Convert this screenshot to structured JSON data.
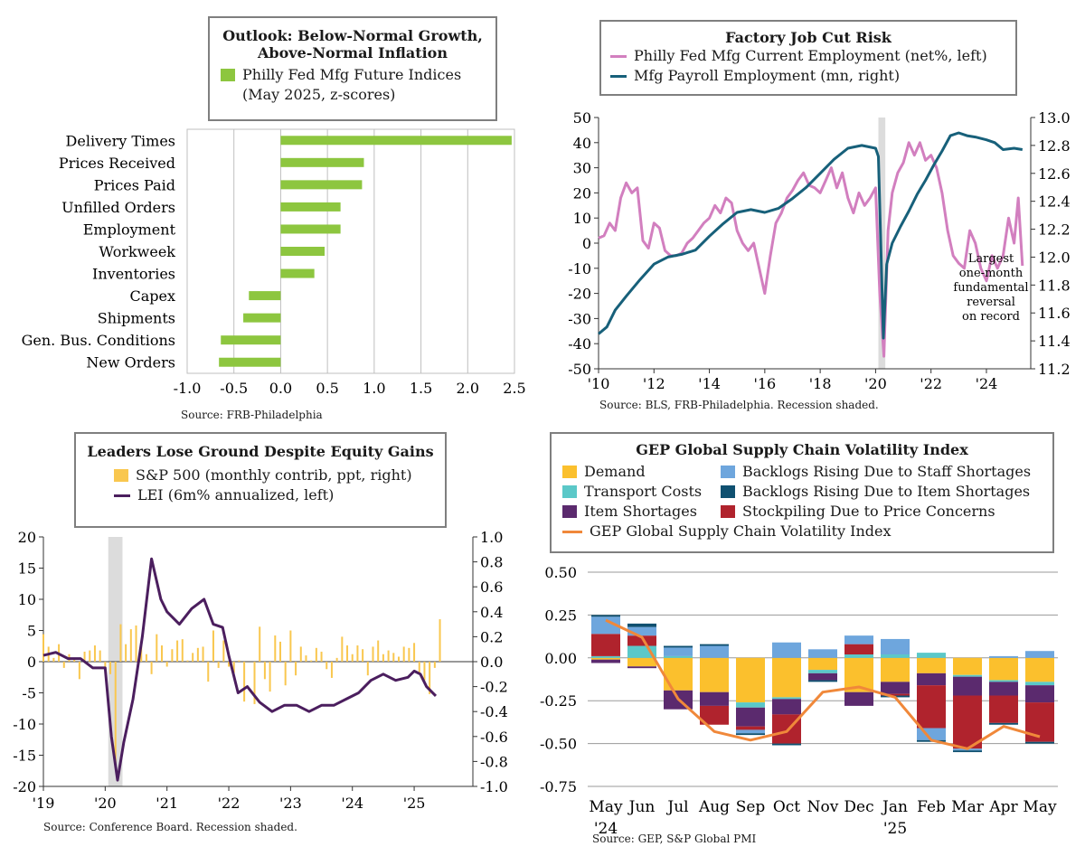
{
  "panels": [
    {
      "id": "philly-outlook",
      "title": "Outlook: Below-Normal Growth, Above-Normal Inflation",
      "source": "Source: FRB-Philadelphia",
      "chart_data": {
        "type": "bar",
        "orientation": "horizontal",
        "title": "Outlook: Below-Normal Growth, Above-Normal Inflation",
        "categories": [
          "Delivery Times",
          "Prices Received",
          "Prices Paid",
          "Unfilled Orders",
          "Employment",
          "Workweek",
          "Inventories",
          "Capex",
          "Shipments",
          "Gen. Bus. Conditions",
          "New Orders"
        ],
        "series": [
          {
            "name": "Philly Fed Mfg Future Indices (May 2025, z-scores)",
            "values": [
              2.47,
              0.89,
              0.87,
              0.64,
              0.64,
              0.47,
              0.36,
              -0.34,
              -0.4,
              -0.64,
              -0.66
            ]
          }
        ],
        "xlim": [
          -1.0,
          2.5
        ],
        "xticks": [
          "-1.0",
          "-0.5",
          "0.0",
          "0.5",
          "1.0",
          "1.5",
          "2.0",
          "2.5"
        ],
        "grid": true,
        "color": "#8dc63f",
        "legend": "top"
      }
    },
    {
      "id": "factory-job-cut",
      "title": "Factory Job Cut Risk",
      "source": "Source: BLS, FRB-Philadelphia. Recession shaded.",
      "annotation": [
        "Largest",
        "one-month",
        "fundamental",
        "reversal",
        "on record"
      ],
      "chart_data": {
        "type": "line",
        "title": "Factory Job Cut Risk",
        "xlim": [
          2010,
          2025.6
        ],
        "xticks": [
          "'10",
          "'12",
          "'14",
          "'16",
          "'18",
          "'20",
          "'22",
          "'24"
        ],
        "ylim_left": [
          -50,
          50
        ],
        "yticks_left": [
          "50",
          "40",
          "30",
          "20",
          "10",
          "0",
          "-10",
          "-20",
          "-30",
          "-40",
          "-50"
        ],
        "ylim_right": [
          11.2,
          13.0
        ],
        "yticks_right": [
          "13.0",
          "12.8",
          "12.6",
          "12.4",
          "12.2",
          "12.0",
          "11.8",
          "11.6",
          "11.4",
          "11.2"
        ],
        "recession": [
          2020.1,
          2020.35
        ],
        "series": [
          {
            "name": "Philly Fed Mfg Current Employment (net%, left)",
            "axis": "left",
            "color": "#d27fbf",
            "x": [
              2010,
              2010.2,
              2010.4,
              2010.6,
              2010.8,
              2011,
              2011.2,
              2011.4,
              2011.6,
              2011.8,
              2012,
              2012.2,
              2012.4,
              2012.6,
              2012.8,
              2013,
              2013.2,
              2013.4,
              2013.6,
              2013.8,
              2014,
              2014.2,
              2014.4,
              2014.6,
              2014.8,
              2015,
              2015.2,
              2015.4,
              2015.6,
              2015.8,
              2016,
              2016.2,
              2016.4,
              2016.6,
              2016.8,
              2017,
              2017.2,
              2017.4,
              2017.6,
              2017.8,
              2018,
              2018.2,
              2018.4,
              2018.6,
              2018.8,
              2019,
              2019.2,
              2019.4,
              2019.6,
              2019.8,
              2020,
              2020.15,
              2020.3,
              2020.45,
              2020.6,
              2020.8,
              2021,
              2021.2,
              2021.4,
              2021.6,
              2021.8,
              2022,
              2022.2,
              2022.4,
              2022.6,
              2022.8,
              2023,
              2023.2,
              2023.4,
              2023.6,
              2023.8,
              2024,
              2024.2,
              2024.4,
              2024.6,
              2024.8,
              2025,
              2025.15,
              2025.3
            ],
            "values": [
              2,
              3,
              8,
              5,
              18,
              24,
              20,
              22,
              1,
              -2,
              8,
              6,
              -3,
              -5,
              -5,
              -4,
              0,
              2,
              5,
              8,
              10,
              15,
              12,
              18,
              16,
              5,
              0,
              -3,
              0,
              -10,
              -20,
              -5,
              8,
              12,
              18,
              21,
              25,
              28,
              23,
              22,
              20,
              25,
              30,
              22,
              28,
              18,
              12,
              20,
              15,
              18,
              22,
              -20,
              -45,
              5,
              20,
              28,
              32,
              40,
              35,
              40,
              33,
              35,
              30,
              20,
              5,
              -5,
              -8,
              -10,
              5,
              0,
              -10,
              -15,
              -5,
              -10,
              -5,
              10,
              0,
              18,
              -9
            ]
          },
          {
            "name": "Mfg Payroll Employment (mn, right)",
            "axis": "right",
            "color": "#17607a",
            "x": [
              2010,
              2010.3,
              2010.6,
              2011,
              2011.5,
              2012,
              2012.5,
              2013,
              2013.5,
              2014,
              2014.5,
              2015,
              2015.5,
              2016,
              2016.5,
              2017,
              2017.5,
              2018,
              2018.5,
              2019,
              2019.5,
              2020,
              2020.1,
              2020.28,
              2020.4,
              2020.6,
              2020.9,
              2021.2,
              2021.5,
              2021.8,
              2022.1,
              2022.4,
              2022.7,
              2023,
              2023.3,
              2023.6,
              2024,
              2024.3,
              2024.6,
              2025,
              2025.3
            ],
            "values": [
              11.45,
              11.5,
              11.62,
              11.72,
              11.84,
              11.95,
              12.0,
              12.02,
              12.05,
              12.15,
              12.24,
              12.32,
              12.34,
              12.32,
              12.35,
              12.42,
              12.5,
              12.6,
              12.7,
              12.78,
              12.8,
              12.78,
              12.72,
              11.42,
              11.95,
              12.1,
              12.22,
              12.33,
              12.45,
              12.55,
              12.66,
              12.76,
              12.87,
              12.89,
              12.87,
              12.86,
              12.84,
              12.82,
              12.77,
              12.78,
              12.77
            ]
          }
        ]
      }
    },
    {
      "id": "leaders-lose-ground",
      "title": "Leaders Lose Ground Despite Equity Gains",
      "source": "Source: Conference Board. Recession shaded.",
      "chart_data": {
        "type": "bar+line",
        "title": "Leaders Lose Ground Despite Equity Gains",
        "xlim": [
          2019,
          2025.95
        ],
        "xticks": [
          "'19",
          "'20",
          "'21",
          "'22",
          "'23",
          "'24",
          "'25"
        ],
        "ylim_left": [
          -20,
          20
        ],
        "yticks_left": [
          "20",
          "15",
          "10",
          "5",
          "0",
          "-5",
          "-10",
          "-15",
          "-20"
        ],
        "ylim_right": [
          -1.0,
          1.0
        ],
        "yticks_right": [
          "1.0",
          "0.8",
          "0.6",
          "0.4",
          "0.2",
          "0.0",
          "-0.2",
          "-0.4",
          "-0.6",
          "-0.8",
          "-1.0"
        ],
        "recession": [
          2020.05,
          2020.28
        ],
        "series": [
          {
            "name": "S&P 500 (monthly contrib, ppt, right)",
            "axis": "right",
            "color": "#f9c74f",
            "type": "bar",
            "values": [
              0.22,
              0.12,
              0.03,
              0.14,
              -0.05,
              0.06,
              0.03,
              -0.14,
              0.08,
              0.09,
              0.13,
              0.09,
              -0.05,
              -0.1,
              -0.85,
              0.3,
              0.14,
              0.26,
              0.29,
              0.13,
              0.06,
              -0.1,
              0.22,
              0.13,
              -0.04,
              0.1,
              0.17,
              0.18,
              0.01,
              0.07,
              0.11,
              0.12,
              -0.16,
              0.25,
              -0.05,
              0.17,
              -0.04,
              -0.09,
              0.01,
              -0.32,
              0.0,
              -0.34,
              0.28,
              -0.14,
              -0.24,
              0.21,
              0.16,
              -0.19,
              0.25,
              -0.11,
              0.12,
              0.05,
              0.01,
              0.11,
              0.08,
              -0.06,
              -0.13,
              0.03,
              0.2,
              0.13,
              0.06,
              0.13,
              0.1,
              -0.11,
              0.12,
              0.17,
              0.06,
              0.09,
              0.07,
              0.04,
              0.12,
              0.11,
              0.15,
              -0.1,
              -0.15,
              -0.26,
              -0.05,
              0.34
            ]
          },
          {
            "name": "LEI (6m% annualized, left)",
            "axis": "left",
            "color": "#4b1e5e",
            "type": "line",
            "x": [
              2019,
              2019.2,
              2019.4,
              2019.6,
              2019.8,
              2020,
              2020.1,
              2020.2,
              2020.3,
              2020.45,
              2020.6,
              2020.75,
              2020.9,
              2021,
              2021.2,
              2021.4,
              2021.6,
              2021.75,
              2021.9,
              2022,
              2022.15,
              2022.3,
              2022.5,
              2022.7,
              2022.9,
              2023.1,
              2023.3,
              2023.5,
              2023.7,
              2023.9,
              2024.1,
              2024.3,
              2024.5,
              2024.7,
              2024.9,
              2025,
              2025.1,
              2025.2,
              2025.35
            ],
            "values": [
              1,
              1.5,
              0.5,
              0.5,
              -1,
              -1,
              -12,
              -19,
              -13,
              -6,
              4,
              16.5,
              10,
              8,
              6,
              8.5,
              10,
              6,
              5.5,
              1,
              -5,
              -4,
              -6.5,
              -8,
              -7,
              -7,
              -8,
              -7,
              -7,
              -6,
              -5,
              -3,
              -2,
              -3,
              -2.5,
              -1.5,
              -2,
              -4,
              -5.5
            ]
          }
        ]
      }
    },
    {
      "id": "gep-supply-chain",
      "title": "GEP Global Supply Chain Volatility Index",
      "source": "Source: GEP, S&P Global PMI",
      "chart_data": {
        "type": "stacked-bar+line",
        "title": "GEP Global Supply Chain Volatility Index",
        "categories": [
          "May",
          "Jun",
          "Jul",
          "Aug",
          "Sep",
          "Oct",
          "Nov",
          "Dec",
          "Jan",
          "Feb",
          "Mar",
          "Apr",
          "May"
        ],
        "category_sublabels": [
          "'24",
          "",
          "",
          "",
          "",
          "",
          "",
          "",
          "'25",
          "",
          "",
          "",
          ""
        ],
        "ylim": [
          -0.75,
          0.5
        ],
        "yticks": [
          "0.50",
          "0.25",
          "0.00",
          "-0.25",
          "-0.50",
          "-0.75"
        ],
        "series": [
          {
            "name": "Demand",
            "color": "#fbc02d",
            "values": [
              -0.01,
              -0.05,
              -0.19,
              -0.2,
              -0.26,
              -0.23,
              -0.07,
              -0.2,
              -0.14,
              -0.09,
              -0.1,
              -0.13,
              -0.14
            ]
          },
          {
            "name": "Transport Costs",
            "color": "#5bc8c8",
            "values": [
              0.01,
              0.07,
              0.01,
              0.0,
              -0.03,
              -0.01,
              -0.02,
              0.02,
              0.02,
              0.03,
              -0.01,
              -0.01,
              -0.02
            ]
          },
          {
            "name": "Item Shortages",
            "color": "#5b2a6e",
            "values": [
              -0.02,
              -0.01,
              -0.11,
              -0.08,
              -0.11,
              -0.09,
              -0.04,
              -0.08,
              -0.07,
              -0.07,
              -0.11,
              -0.08,
              -0.1
            ]
          },
          {
            "name": "Stockpiling Due to Price Concerns",
            "color": "#b0232d",
            "values": [
              0.13,
              0.06,
              0.0,
              -0.11,
              -0.02,
              -0.17,
              0.0,
              0.06,
              -0.01,
              -0.25,
              -0.31,
              -0.16,
              -0.23
            ]
          },
          {
            "name": "Backlogs Rising Due to Staff Shortages",
            "color": "#6ea6dd",
            "values": [
              0.1,
              0.05,
              0.05,
              0.07,
              -0.02,
              0.09,
              0.05,
              0.05,
              0.09,
              -0.07,
              -0.01,
              0.01,
              0.04
            ]
          },
          {
            "name": "Backlogs Rising Due to Item Shortages",
            "color": "#0f5070",
            "values": [
              0.01,
              0.02,
              0.01,
              0.01,
              -0.01,
              -0.01,
              -0.01,
              0.0,
              -0.01,
              -0.01,
              -0.01,
              -0.01,
              -0.01
            ]
          },
          {
            "name": "GEP Global Supply Chain Volatility Index",
            "color": "#f0883a",
            "type": "line",
            "values": [
              0.22,
              0.12,
              -0.24,
              -0.43,
              -0.48,
              -0.43,
              -0.2,
              -0.17,
              -0.23,
              -0.48,
              -0.53,
              -0.4,
              -0.46
            ]
          }
        ]
      }
    }
  ]
}
